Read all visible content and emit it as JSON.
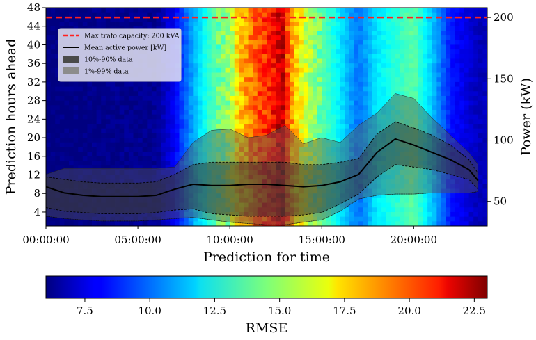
{
  "chart_data": {
    "type": "heatmap",
    "xlabel": "Prediction for time",
    "ylabel": "Prediction hours ahead",
    "y2label": "Power (kW)",
    "colorbar_label": "RMSE",
    "x_ticks": [
      "00:00:00",
      "05:00:00",
      "10:00:00",
      "15:00:00",
      "20:00:00"
    ],
    "x_tick_hours": [
      0,
      5,
      10,
      15,
      20
    ],
    "x_range_hours": [
      0,
      24
    ],
    "y_ticks": [
      4,
      8,
      12,
      16,
      20,
      24,
      28,
      32,
      36,
      40,
      44,
      48
    ],
    "y_range": [
      1,
      48
    ],
    "y2_ticks": [
      50,
      100,
      150,
      200
    ],
    "y2_range": [
      30,
      208
    ],
    "colorbar_ticks": [
      "7.5",
      "10.0",
      "12.5",
      "15.0",
      "17.5",
      "20.0",
      "22.5"
    ],
    "colorbar_tick_values": [
      7.5,
      10.0,
      12.5,
      15.0,
      17.5,
      20.0,
      22.5
    ],
    "colorbar_range": [
      6.0,
      23.0
    ],
    "colormap": "jet",
    "heatmap_rmse_by_hour": [
      {
        "hour": 0,
        "rmse": 6.0
      },
      {
        "hour": 6,
        "rmse": 6.3
      },
      {
        "hour": 7,
        "rmse": 8.0
      },
      {
        "hour": 8,
        "rmse": 11.0
      },
      {
        "hour": 9,
        "rmse": 13.5
      },
      {
        "hour": 10,
        "rmse": 15.0
      },
      {
        "hour": 10.5,
        "rmse": 17.5
      },
      {
        "hour": 11.5,
        "rmse": 19.5
      },
      {
        "hour": 12.5,
        "rmse": 21.0
      },
      {
        "hour": 12.8,
        "rmse": 22.5
      },
      {
        "hour": 13.2,
        "rmse": 19.0
      },
      {
        "hour": 14,
        "rmse": 16.0
      },
      {
        "hour": 15,
        "rmse": 14.0
      },
      {
        "hour": 16,
        "rmse": 12.0
      },
      {
        "hour": 17,
        "rmse": 10.0
      },
      {
        "hour": 18,
        "rmse": 12.0
      },
      {
        "hour": 19,
        "rmse": 13.0
      },
      {
        "hour": 20,
        "rmse": 14.0
      },
      {
        "hour": 21,
        "rmse": 11.5
      },
      {
        "hour": 22,
        "rmse": 8.5
      },
      {
        "hour": 23.5,
        "rmse": 7.0
      }
    ],
    "series": [
      {
        "name": "Max trafo capacity: 200 kVA",
        "type": "hline",
        "value": 200,
        "color": "#ff2020",
        "style": "dashed"
      },
      {
        "name": "Mean active power [kW]",
        "type": "line",
        "color": "#000000",
        "x": [
          0,
          1,
          2,
          3,
          4,
          5,
          6,
          7,
          8,
          9,
          10,
          11,
          12,
          13,
          14,
          15,
          16,
          17,
          18,
          19,
          20,
          21,
          22,
          23,
          23.5
        ],
        "y": [
          62,
          57,
          55,
          54,
          54,
          54,
          55,
          60,
          64,
          63,
          63,
          64,
          64,
          63,
          62,
          63,
          66,
          72,
          90,
          101,
          96,
          90,
          84,
          76,
          67
        ]
      },
      {
        "name": "10%-90% data",
        "type": "band",
        "color": "#444444",
        "x": [
          0,
          1,
          2,
          3,
          4,
          5,
          6,
          7,
          8,
          9,
          10,
          11,
          12,
          13,
          14,
          15,
          16,
          17,
          18,
          19,
          20,
          21,
          22,
          23,
          23.5
        ],
        "low": [
          45,
          42,
          41,
          40,
          40,
          40,
          41,
          43,
          44,
          40,
          39,
          38,
          38,
          38,
          39,
          41,
          48,
          56,
          70,
          80,
          78,
          76,
          72,
          68,
          60
        ],
        "high": [
          70,
          68,
          66,
          65,
          65,
          65,
          66,
          72,
          80,
          82,
          82,
          82,
          82,
          82,
          80,
          80,
          82,
          85,
          105,
          115,
          110,
          104,
          96,
          84,
          73
        ]
      },
      {
        "name": "1%-99% data",
        "type": "band",
        "color": "#888888",
        "x": [
          0,
          1,
          2,
          3,
          4,
          5,
          6,
          7,
          8,
          9,
          10,
          11,
          12,
          13,
          14,
          15,
          16,
          17,
          18,
          19,
          20,
          21,
          22,
          23,
          23.5
        ],
        "low": [
          38,
          36,
          35,
          34,
          34,
          34,
          35,
          36,
          37,
          35,
          33,
          32,
          31,
          31,
          33,
          35,
          42,
          52,
          55,
          56,
          56,
          57,
          57,
          57,
          58
        ],
        "high": [
          72,
          77,
          77,
          77,
          77,
          77,
          77,
          78,
          98,
          108,
          109,
          102,
          104,
          112,
          97,
          102,
          98,
          112,
          122,
          138,
          134,
          118,
          104,
          90,
          80
        ]
      }
    ],
    "legend_position": "upper-left"
  }
}
